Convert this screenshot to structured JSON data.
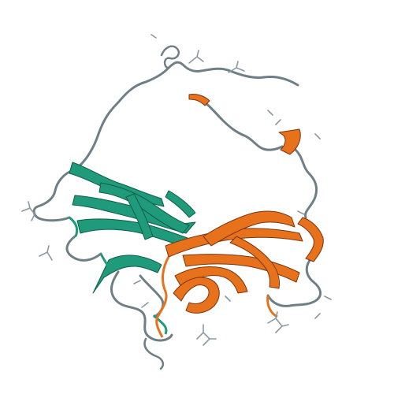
{
  "figure": {
    "background": "#ffffff",
    "colors": {
      "coil": "#6f7f86",
      "coil_dark": "#4e5b60",
      "domain_a": "#1f9a7a",
      "domain_a_dark": "#0f5e48",
      "domain_b": "#e8721c",
      "domain_b_dark": "#7a3510",
      "ligand": "#8a9aa0"
    },
    "elements": {
      "backbone": "protein-backbone-coil",
      "domain_a": "beta-sheet-domain-teal",
      "domain_b": "beta-sheet-domain-orange",
      "ligands": "small-molecule-sticks"
    }
  }
}
